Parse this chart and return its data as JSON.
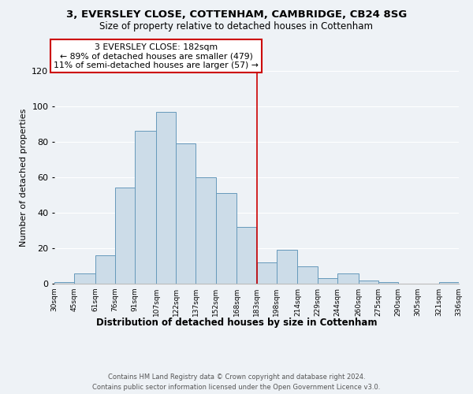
{
  "title1": "3, EVERSLEY CLOSE, COTTENHAM, CAMBRIDGE, CB24 8SG",
  "title2": "Size of property relative to detached houses in Cottenham",
  "xlabel": "Distribution of detached houses by size in Cottenham",
  "ylabel": "Number of detached properties",
  "bin_edges": [
    30,
    45,
    61,
    76,
    91,
    107,
    122,
    137,
    152,
    168,
    183,
    198,
    214,
    229,
    244,
    260,
    275,
    290,
    305,
    321,
    336
  ],
  "bar_heights": [
    1,
    6,
    16,
    54,
    86,
    97,
    79,
    60,
    51,
    32,
    12,
    19,
    10,
    3,
    6,
    2,
    1,
    0,
    0,
    1
  ],
  "bar_color": "#ccdce8",
  "bar_edge_color": "#6699bb",
  "vline_x": 183,
  "vline_color": "#cc0000",
  "annotation_line1": "3 EVERSLEY CLOSE: 182sqm",
  "annotation_line2": "← 89% of detached houses are smaller (479)",
  "annotation_line3": "11% of semi-detached houses are larger (57) →",
  "annotation_box_color": "#ffffff",
  "annotation_box_edge": "#cc0000",
  "ylim": [
    0,
    120
  ],
  "yticks": [
    0,
    20,
    40,
    60,
    80,
    100,
    120
  ],
  "tick_labels": [
    "30sqm",
    "45sqm",
    "61sqm",
    "76sqm",
    "91sqm",
    "107sqm",
    "122sqm",
    "137sqm",
    "152sqm",
    "168sqm",
    "183sqm",
    "198sqm",
    "214sqm",
    "229sqm",
    "244sqm",
    "260sqm",
    "275sqm",
    "290sqm",
    "305sqm",
    "321sqm",
    "336sqm"
  ],
  "footer1": "Contains HM Land Registry data © Crown copyright and database right 2024.",
  "footer2": "Contains public sector information licensed under the Open Government Licence v3.0.",
  "bg_color": "#eef2f6",
  "grid_color": "#ffffff",
  "font_family": "DejaVu Sans"
}
